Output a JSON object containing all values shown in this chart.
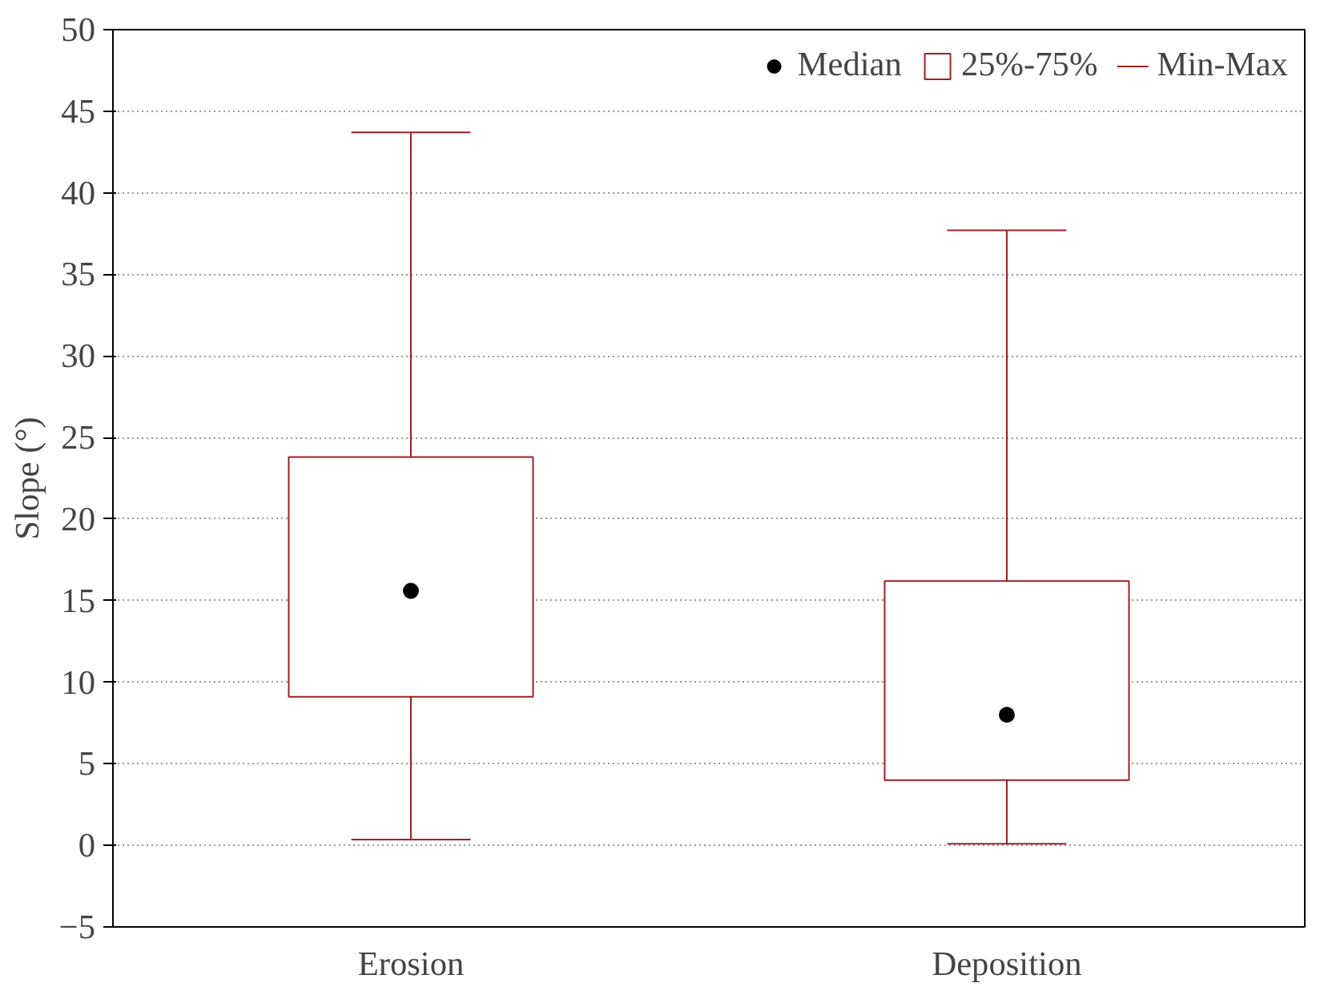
{
  "chart_data": {
    "type": "box",
    "ylabel": "Slope (°)",
    "categories": [
      "Erosion",
      "Deposition"
    ],
    "series": [
      {
        "name": "Median",
        "type": "scatter",
        "color": "#000000",
        "values": [
          15.6,
          8.0
        ]
      },
      {
        "name": "25%-75%",
        "type": "box",
        "color": "#9b2226",
        "boxes": [
          {
            "low": 0.35,
            "q1": 9.1,
            "q3": 23.8,
            "high": 43.7
          },
          {
            "low": 0.1,
            "q1": 4.0,
            "q3": 16.2,
            "high": 37.7
          }
        ]
      }
    ],
    "annotations": [
      "Min-Max"
    ],
    "ylim": [
      -5,
      50
    ],
    "yticks": [
      -5,
      0,
      5,
      10,
      15,
      20,
      25,
      30,
      35,
      40,
      45,
      50
    ],
    "grid": "y",
    "legend": "top right",
    "marker": "circle"
  }
}
